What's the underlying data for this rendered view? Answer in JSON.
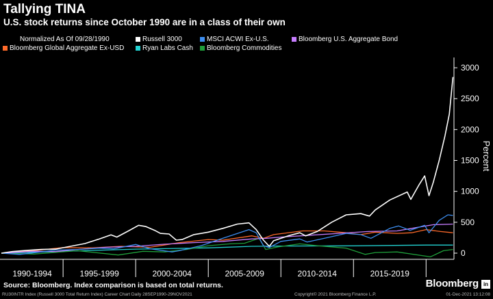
{
  "header": {
    "title": "Tallying TINA",
    "subtitle": "U.S. stock returns since October 1990 are in a class of their own"
  },
  "legend": {
    "note": "Normalized As Of 09/28/1990",
    "items": [
      {
        "label": "Russell 3000",
        "color": "#ffffff"
      },
      {
        "label": "MSCI ACWI Ex-U.S.",
        "color": "#3d8ef0"
      },
      {
        "label": "Bloomberg U.S. Aggregate Bond",
        "color": "#c77dff"
      },
      {
        "label": "Bloomberg Global Aggregate Ex-USD",
        "color": "#ff6a2a"
      },
      {
        "label": "Ryan Labs Cash",
        "color": "#22d3d3"
      },
      {
        "label": "Bloomberg Commodities",
        "color": "#1f9e3a"
      }
    ]
  },
  "chart_data": {
    "type": "line",
    "xlim": [
      1990.75,
      2021.92
    ],
    "ylim": [
      -100,
      3100
    ],
    "ylabel": "Percent",
    "y_ticks": [
      0,
      500,
      1000,
      1500,
      2000,
      2500,
      3000
    ],
    "x_period_labels": [
      "1990-1994",
      "1995-1999",
      "2000-2004",
      "2005-2009",
      "2010-2014",
      "2015-2019"
    ],
    "x_period_bounds": [
      1995,
      2000,
      2005,
      2010,
      2015,
      2020
    ],
    "grid": false,
    "legend_position": "top",
    "series": [
      {
        "name": "Russell 3000",
        "color": "#ffffff",
        "x": [
          1990.75,
          1991.5,
          1992.5,
          1993.5,
          1994.5,
          1995.5,
          1996.5,
          1997.5,
          1998.3,
          1998.7,
          1999.5,
          2000.2,
          2000.7,
          2001.3,
          2001.7,
          2002.3,
          2002.8,
          2003.2,
          2004,
          2005,
          2006,
          2007,
          2007.8,
          2008.3,
          2008.8,
          2009.2,
          2009.5,
          2010.5,
          2011.3,
          2011.7,
          2012.5,
          2013.5,
          2014.5,
          2015.5,
          2016.1,
          2016.5,
          2017.5,
          2018.7,
          2018.95,
          2019.5,
          2019.9,
          2020.2,
          2020.5,
          2020.9,
          2021.3,
          2021.6,
          2021.85
        ],
        "y": [
          0,
          25,
          45,
          60,
          65,
          110,
          155,
          230,
          295,
          260,
          360,
          450,
          430,
          370,
          320,
          310,
          210,
          220,
          300,
          340,
          400,
          470,
          490,
          380,
          210,
          110,
          200,
          280,
          330,
          280,
          350,
          500,
          620,
          640,
          600,
          700,
          860,
          990,
          870,
          1100,
          1250,
          930,
          1150,
          1500,
          1900,
          2250,
          2850
        ]
      },
      {
        "name": "MSCI ACWI Ex-U.S.",
        "color": "#3d8ef0",
        "x": [
          1990.75,
          1992,
          1993.5,
          1994.5,
          1996,
          1997.5,
          1998.5,
          2000,
          2001,
          2002.5,
          2003,
          2004.5,
          2006,
          2007.8,
          2008.3,
          2008.8,
          2009.2,
          2010,
          2011.3,
          2011.8,
          2013,
          2014.5,
          2015.5,
          2016.2,
          2017.5,
          2018.1,
          2018.9,
          2019.9,
          2020.2,
          2020.9,
          2021.5,
          2021.85
        ],
        "y": [
          0,
          -20,
          20,
          50,
          60,
          80,
          70,
          140,
          70,
          20,
          40,
          120,
          240,
          380,
          330,
          120,
          90,
          190,
          230,
          180,
          240,
          320,
          300,
          240,
          400,
          440,
          370,
          450,
          330,
          530,
          620,
          610
        ]
      },
      {
        "name": "Bloomberg U.S. Aggregate Bond",
        "color": "#c77dff",
        "x": [
          1990.75,
          1993,
          1994.5,
          1996,
          1998,
          2000,
          2002,
          2004,
          2006,
          2008,
          2009,
          2010,
          2012,
          2014,
          2016,
          2018,
          2019,
          2020.5,
          2021.85
        ],
        "y": [
          0,
          30,
          25,
          60,
          95,
          110,
          145,
          170,
          190,
          230,
          240,
          260,
          290,
          320,
          350,
          360,
          400,
          460,
          470
        ]
      },
      {
        "name": "Bloomberg Global Aggregate Ex-USD",
        "color": "#ff6a2a",
        "x": [
          1990.75,
          1993,
          1995,
          1997,
          1999,
          2001,
          2003,
          2005,
          2006,
          2008,
          2008.8,
          2009.5,
          2011.5,
          2013,
          2014.5,
          2015.5,
          2016.5,
          2018,
          2019,
          2020,
          2021,
          2021.85
        ],
        "y": [
          0,
          40,
          90,
          85,
          110,
          95,
          170,
          220,
          210,
          280,
          240,
          300,
          360,
          360,
          330,
          300,
          340,
          320,
          330,
          380,
          350,
          330
        ]
      },
      {
        "name": "Ryan Labs Cash",
        "color": "#22d3d3",
        "x": [
          1990.75,
          1995,
          2000,
          2005,
          2008,
          2010,
          2015,
          2020,
          2021.85
        ],
        "y": [
          0,
          30,
          65,
          85,
          110,
          115,
          118,
          130,
          130
        ]
      },
      {
        "name": "Bloomberg Commodities",
        "color": "#1f9e3a",
        "x": [
          1990.75,
          1993,
          1996,
          1998.8,
          2000.5,
          2002,
          2003.5,
          2005,
          2006.5,
          2007.5,
          2008.5,
          2008.95,
          2009.8,
          2011.3,
          2012.5,
          2014.5,
          2015.8,
          2016.5,
          2018,
          2020.3,
          2021.2,
          2021.85
        ],
        "y": [
          0,
          -15,
          40,
          -30,
          30,
          20,
          60,
          120,
          150,
          160,
          240,
          60,
          100,
          150,
          120,
          80,
          -20,
          10,
          20,
          -60,
          40,
          60
        ]
      }
    ]
  },
  "footer": {
    "source": "Source: Bloomberg. Index comparison is based on total returns.",
    "brand": "Bloomberg",
    "brand_badge": "in",
    "ticker_info": "RU30INTR Index (Russell 3000 Total Return Index) Career Chart  Daily 28SEP1990-29NOV2021",
    "copyright": "Copyright© 2021 Bloomberg Finance L.P.",
    "timestamp": "01-Dec-2021 13:12:08"
  }
}
